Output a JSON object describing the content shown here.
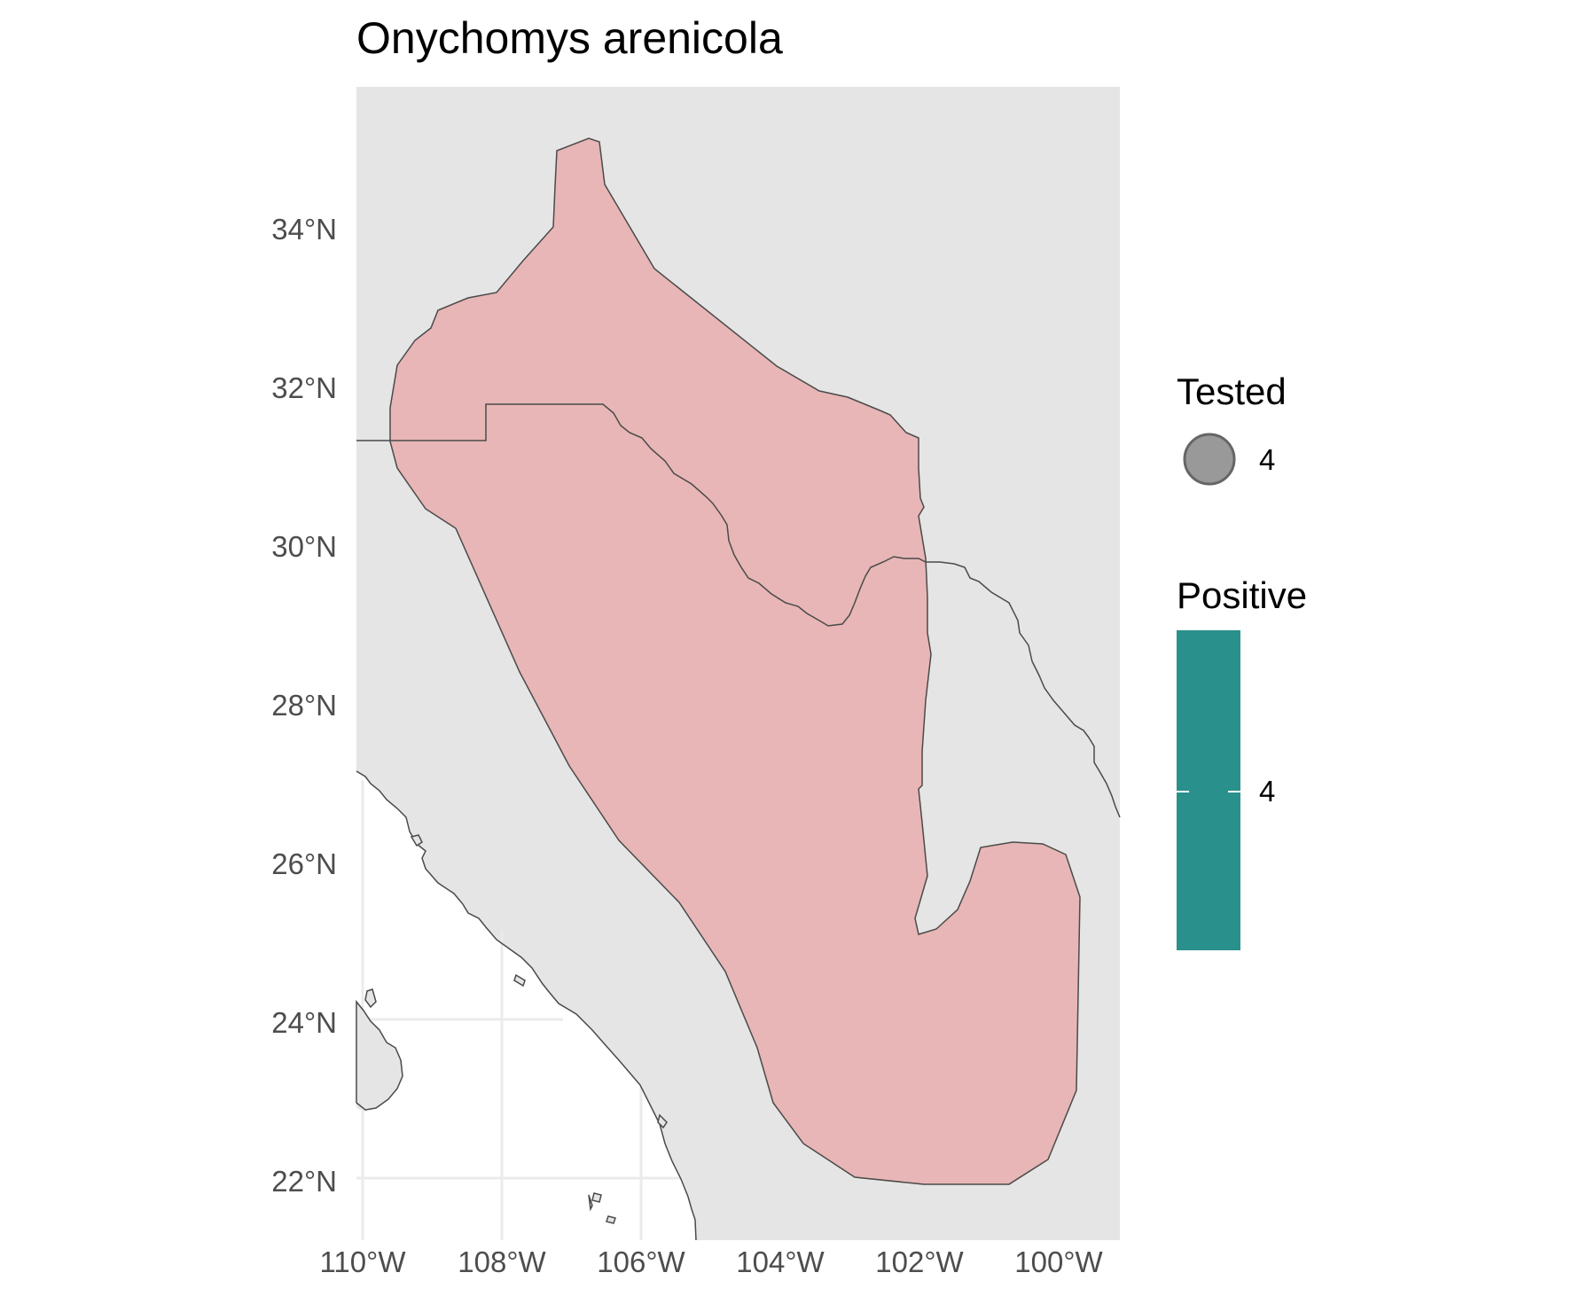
{
  "title": "Onychomys arenicola",
  "axes": {
    "x_ticks": [
      "110°W",
      "108°W",
      "106°W",
      "104°W",
      "102°W",
      "100°W"
    ],
    "y_ticks": [
      "34°N",
      "32°N",
      "30°N",
      "28°N",
      "26°N",
      "24°N",
      "22°N"
    ]
  },
  "legend": {
    "tested": {
      "title": "Tested",
      "value_label": "4"
    },
    "positive": {
      "title": "Positive",
      "value_label": "4"
    }
  },
  "colors": {
    "panel": "#e5e5e5",
    "range_fill": "#e8b6b6",
    "outline": "#4a4a4a",
    "ocean": "#ffffff",
    "grid": "#ebebeb",
    "point_fill": "#999999",
    "positive": "#2a908b"
  },
  "chart_data": {
    "type": "map",
    "title": "Onychomys arenicola",
    "x_label_units": "longitude (°W)",
    "y_label_units": "latitude (°N)",
    "xlim": [
      -110.1,
      -99.1
    ],
    "ylim": [
      21.3,
      35.9
    ],
    "x_ticks": [
      -110,
      -108,
      -106,
      -104,
      -102,
      -100
    ],
    "y_ticks": [
      34,
      32,
      30,
      28,
      26,
      24,
      22
    ],
    "layers": [
      {
        "name": "species range",
        "geometry": "polygon"
      },
      {
        "name": "US–Mexico border",
        "geometry": "line"
      },
      {
        "name": "Pacific coastline",
        "geometry": "line"
      }
    ],
    "legend": [
      {
        "name": "Tested",
        "kind": "size",
        "value": 4
      },
      {
        "name": "Positive",
        "kind": "fill",
        "value": 4
      }
    ]
  }
}
